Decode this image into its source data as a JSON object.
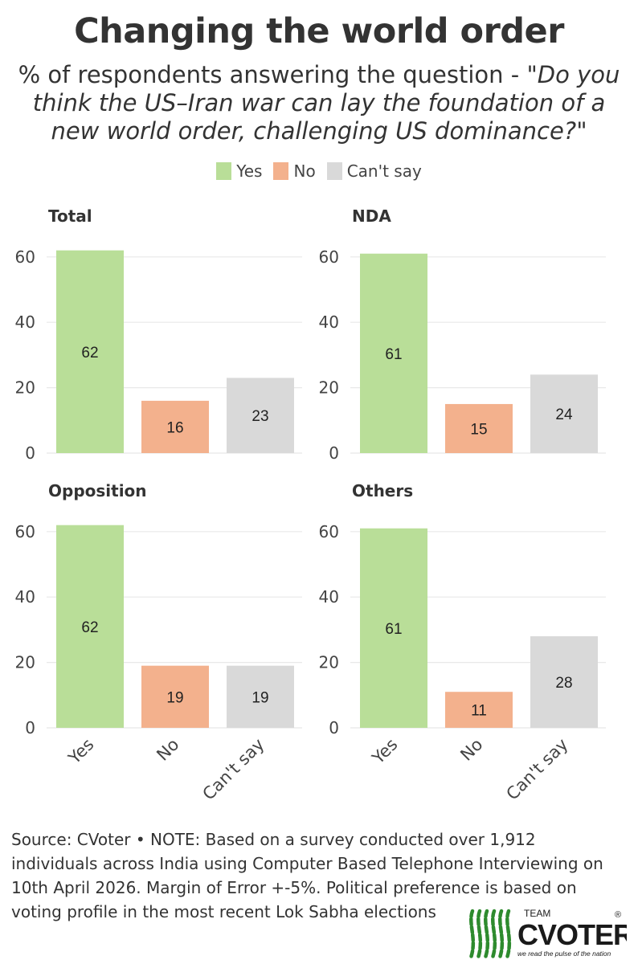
{
  "header": {
    "title": "Changing the world order",
    "subtitle_intro": "% of respondents answering the question - ",
    "subtitle_question_part1": "\"Do you",
    "subtitle_question_part2": "think the US–Iran war can lay the foundation of a",
    "subtitle_question_part3": "new world order, challenging US dominance?\""
  },
  "colors": {
    "yes": "#b9de98",
    "no": "#f3b18d",
    "cant_say": "#d9d9d9",
    "grid": "#e8e8e8",
    "axis_text": "#444444"
  },
  "legend": [
    {
      "label": "Yes",
      "color_key": "yes"
    },
    {
      "label": "No",
      "color_key": "no"
    },
    {
      "label": "Can't say",
      "color_key": "cant_say"
    }
  ],
  "chart_data": [
    {
      "type": "bar",
      "title": "Total",
      "categories": [
        "Yes",
        "No",
        "Can't say"
      ],
      "values": [
        62,
        16,
        23
      ],
      "ylim": [
        0,
        65
      ],
      "yticks": [
        0,
        20,
        40,
        60
      ],
      "xlabel": "",
      "ylabel": ""
    },
    {
      "type": "bar",
      "title": "NDA",
      "categories": [
        "Yes",
        "No",
        "Can't say"
      ],
      "values": [
        61,
        15,
        24
      ],
      "ylim": [
        0,
        65
      ],
      "yticks": [
        0,
        20,
        40,
        60
      ],
      "xlabel": "",
      "ylabel": ""
    },
    {
      "type": "bar",
      "title": "Opposition",
      "categories": [
        "Yes",
        "No",
        "Can't say"
      ],
      "values": [
        62,
        19,
        19
      ],
      "ylim": [
        0,
        65
      ],
      "yticks": [
        0,
        20,
        40,
        60
      ],
      "xlabel": "",
      "ylabel": ""
    },
    {
      "type": "bar",
      "title": "Others",
      "categories": [
        "Yes",
        "No",
        "Can't say"
      ],
      "values": [
        61,
        11,
        28
      ],
      "ylim": [
        0,
        65
      ],
      "yticks": [
        0,
        20,
        40,
        60
      ],
      "xlabel": "",
      "ylabel": ""
    }
  ],
  "footer": {
    "line1": "Source: CVoter • NOTE: Based on a survey conducted over 1,912",
    "line2": "individuals across India using Computer Based Telephone Interviewing on",
    "line3": "10th April 2026. Margin of Error +-5%. Political preference is based on",
    "line4": "voting profile in the most recent Lok Sabha elections"
  },
  "logo": {
    "team": "TEAM",
    "brand": "CVOTER",
    "registered": "®",
    "tagline": "we read the pulse of the nation",
    "brand_color": "#1a1a1a",
    "stripe_color": "#2e8b2e"
  }
}
